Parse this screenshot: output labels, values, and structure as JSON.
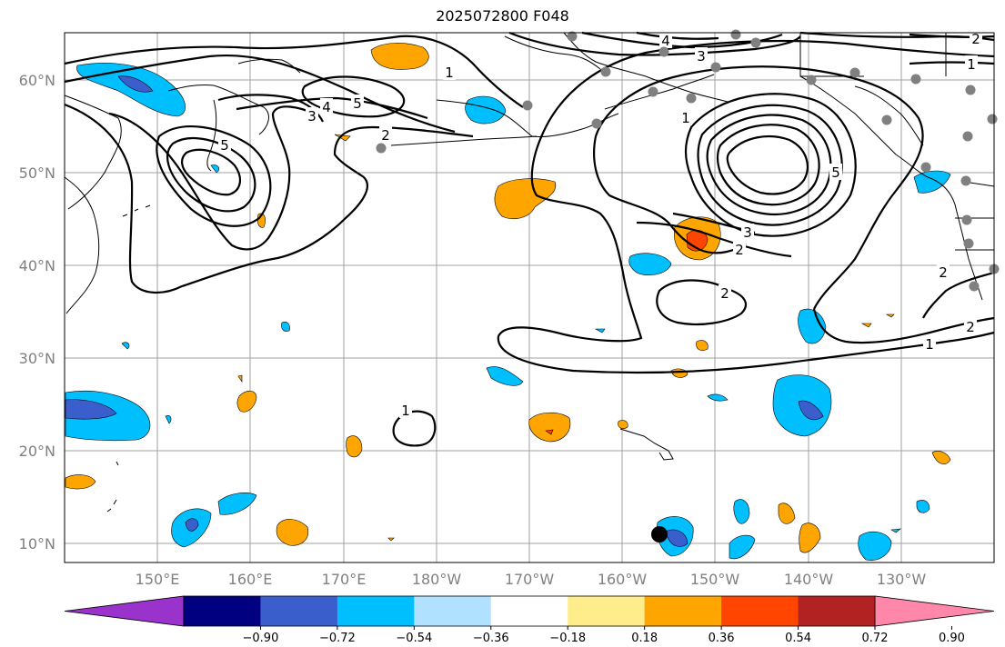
{
  "title": "2025072800 F048",
  "map": {
    "lat_labels": [
      "60°N",
      "50°N",
      "40°N",
      "30°N",
      "20°N",
      "10°N"
    ],
    "lon_labels": [
      "150°E",
      "160°E",
      "170°E",
      "180°W",
      "170°W",
      "160°W",
      "150°W",
      "140°W",
      "130°W"
    ],
    "contour_labels": [
      "1",
      "2",
      "3",
      "4",
      "5",
      "2",
      "3",
      "4",
      "5",
      "1",
      "2",
      "3",
      "5",
      "1",
      "2",
      "1",
      "2",
      "2",
      "1"
    ],
    "marker": "black dot near 11°N, 156°W"
  },
  "colorbar": {
    "ticks": [
      "−0.90",
      "−0.72",
      "−0.54",
      "−0.36",
      "−0.18",
      "0.18",
      "0.36",
      "0.54",
      "0.72",
      "0.90"
    ],
    "colors": [
      "#9933cc",
      "#000080",
      "#3a5fcd",
      "#00bfff",
      "#b0e2ff",
      "#ffffff",
      "#ffec8b",
      "#ffa500",
      "#ff4500",
      "#b22222",
      "#ff88aa"
    ]
  }
}
